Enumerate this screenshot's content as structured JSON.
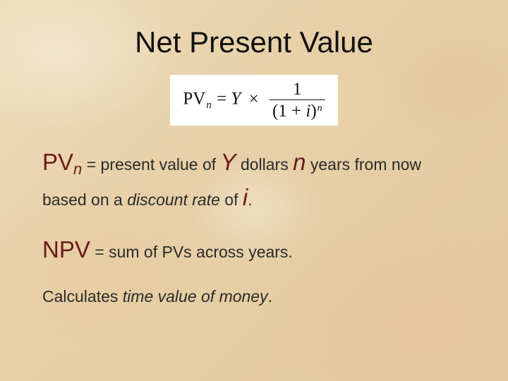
{
  "colors": {
    "text": "#2a2a2a",
    "title": "#111111",
    "emphasis": "#6a1a1a",
    "formula_bg": "#ffffff",
    "paper_base": "#e7d0a8"
  },
  "title": "Net Present Value",
  "formula": {
    "lhs_base": "PV",
    "lhs_sub": "n",
    "eq": " = ",
    "Y": "Y",
    "times": " × ",
    "frac_num": "1",
    "den_open": "(1 + ",
    "den_i": "i",
    "den_close": ")",
    "den_sup": "n"
  },
  "line1": {
    "pv": "PV",
    "pv_sub": "n",
    "t1": " = present value of ",
    "Y": "Y",
    "t2": " dollars ",
    "n": "n",
    "t3": " years from now based on a ",
    "discount_rate": "discount rate",
    "t4": " of ",
    "i": "i",
    "t5": "."
  },
  "line2": {
    "npv": "NPV",
    "rest": " = sum of PVs across years."
  },
  "line3": {
    "t1": "Calculates ",
    "tvm": "time value of money",
    "t2": "."
  }
}
